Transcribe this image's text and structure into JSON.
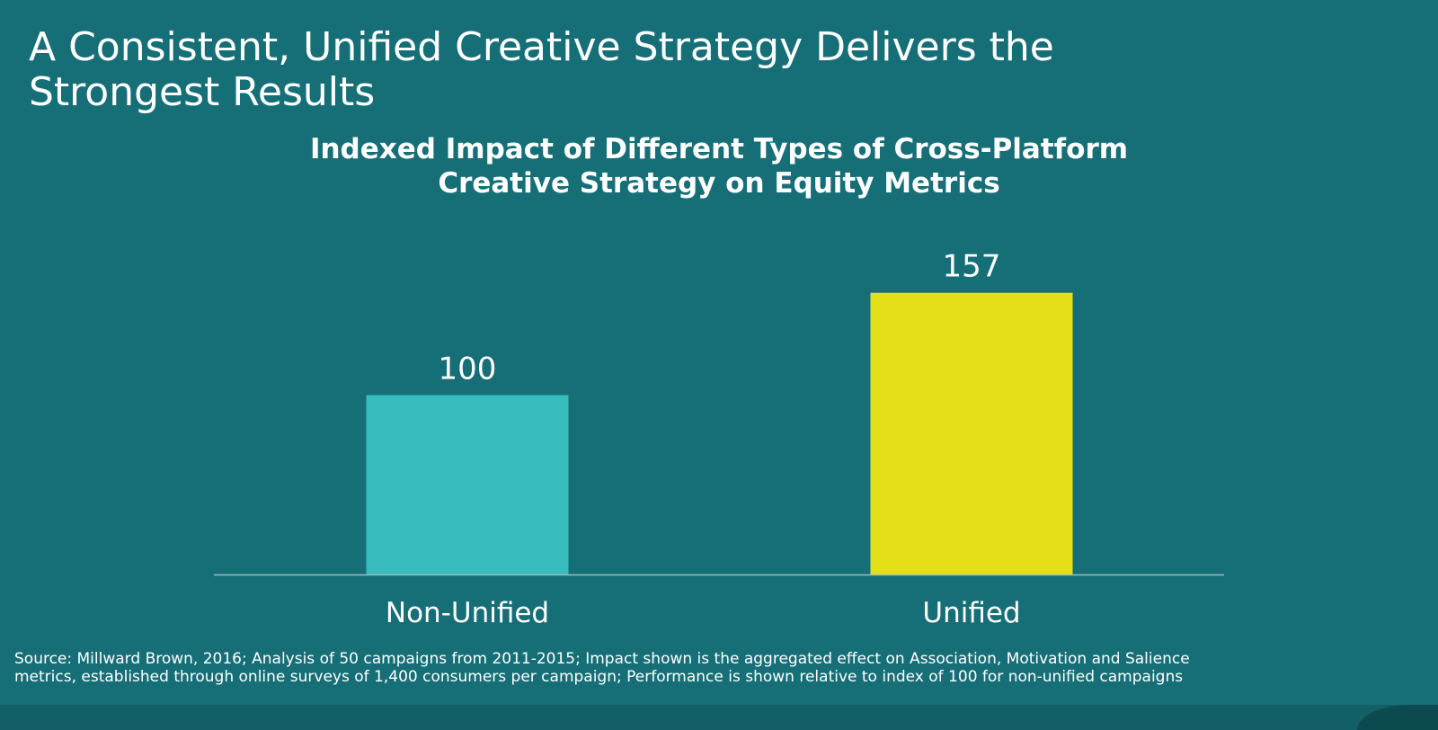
{
  "slide": {
    "title": "A Consistent, Unified Creative Strategy Delivers the Strongest Results",
    "source": "Source: Millward Brown, 2016; Analysis of 50 campaigns from 2011-2015; Impact shown is the aggregated effect on Association, Motivation and Salience metrics, established through online surveys of 1,400 consumers per campaign; Performance is shown relative to index of 100 for non-unified campaigns"
  },
  "colors": {
    "background": "#166f77",
    "non_unified_bar": "#38bcbd",
    "unified_bar": "#e5df18",
    "axis": "#9fbcbf",
    "text": "#ffffff"
  },
  "chart_data": {
    "type": "bar",
    "title_lines": [
      "Indexed Impact of Different Types of Cross-Platform",
      "Creative Strategy on Equity Metrics"
    ],
    "categories": [
      "Non-Unified",
      "Unified"
    ],
    "values": [
      100,
      157
    ],
    "data_labels": [
      "100",
      "157"
    ],
    "xlabel": "",
    "ylabel": "",
    "ylim": [
      0,
      220
    ],
    "grid": false,
    "legend": "none"
  }
}
